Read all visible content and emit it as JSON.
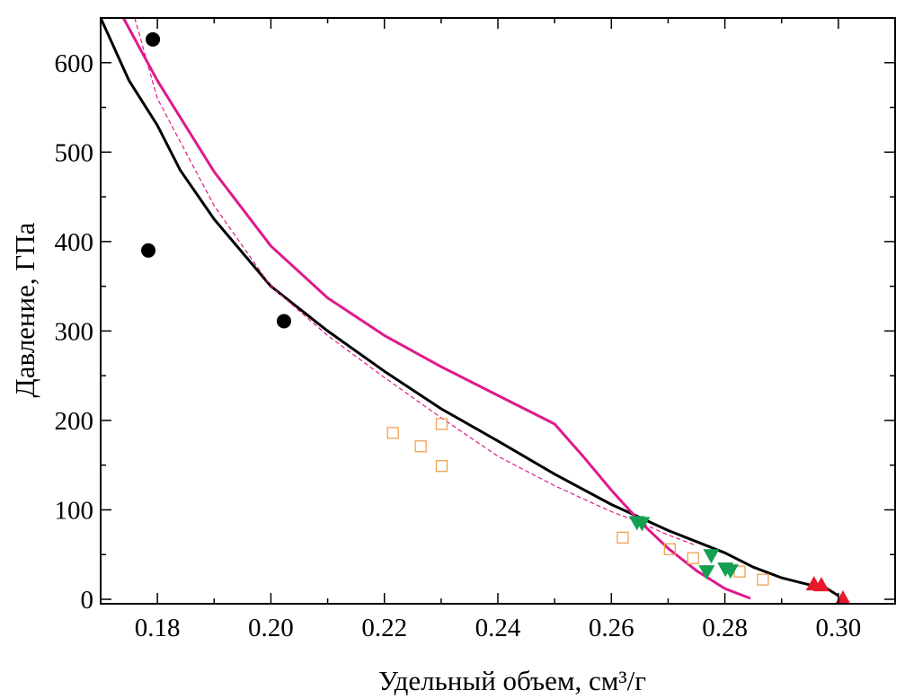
{
  "chart_data": {
    "type": "scatter",
    "title": "",
    "xlabel": "Удельный объем, см³/г",
    "ylabel": "Давление, ГПа",
    "xlim": [
      0.17,
      0.31
    ],
    "ylim": [
      -5,
      650
    ],
    "x_ticks": [
      0.18,
      0.2,
      0.22,
      0.24,
      0.26,
      0.28,
      0.3
    ],
    "x_tick_labels": [
      "0.18",
      "0.20",
      "0.22",
      "0.24",
      "0.26",
      "0.28",
      "0.30"
    ],
    "y_ticks": [
      0,
      100,
      200,
      300,
      400,
      500,
      600
    ],
    "y_tick_labels": [
      "0",
      "100",
      "200",
      "300",
      "400",
      "500",
      "600"
    ],
    "grid": false,
    "series": [
      {
        "name": "black-curve",
        "kind": "line",
        "color": "#000000",
        "x": [
          0.17,
          0.175,
          0.18,
          0.184,
          0.19,
          0.2,
          0.21,
          0.22,
          0.23,
          0.24,
          0.25,
          0.26,
          0.27,
          0.28,
          0.285,
          0.29,
          0.295,
          0.298,
          0.3
        ],
        "y": [
          650,
          580,
          530,
          480,
          425,
          350,
          300,
          255,
          213,
          177,
          140,
          106,
          77,
          52,
          36,
          24,
          16,
          12,
          4
        ]
      },
      {
        "name": "magenta-solid-curve",
        "kind": "line",
        "color": "#e0198c",
        "x": [
          0.174,
          0.18,
          0.19,
          0.2,
          0.21,
          0.22,
          0.23,
          0.24,
          0.25,
          0.255,
          0.26,
          0.265,
          0.27,
          0.275,
          0.28,
          0.2845
        ],
        "y": [
          650,
          580,
          478,
          395,
          337,
          295,
          260,
          228,
          196,
          160,
          122,
          87,
          57,
          32,
          12,
          1
        ]
      },
      {
        "name": "magenta-dashed-curve",
        "kind": "line",
        "dashed": true,
        "color": "#e0198c",
        "x": [
          0.176,
          0.18,
          0.19,
          0.2,
          0.21,
          0.22,
          0.23,
          0.24,
          0.25,
          0.26,
          0.265,
          0.27,
          0.275
        ],
        "y": [
          650,
          560,
          440,
          350,
          295,
          248,
          203,
          160,
          127,
          98,
          86,
          72,
          60
        ]
      },
      {
        "name": "black-circles",
        "kind": "scatter",
        "marker": "circle",
        "color": "#000000",
        "x": [
          0.1792,
          0.1784,
          0.2023
        ],
        "y": [
          626,
          390,
          311
        ]
      },
      {
        "name": "orange-squares",
        "kind": "scatter",
        "marker": "square-open",
        "color": "#f0a050",
        "x": [
          0.2215,
          0.2264,
          0.2301,
          0.2301,
          0.262,
          0.2703,
          0.2744,
          0.2826,
          0.2867
        ],
        "y": [
          186,
          171,
          196,
          149,
          69,
          56,
          46,
          31,
          22
        ]
      },
      {
        "name": "green-triangles-down",
        "kind": "scatter",
        "marker": "triangle-down",
        "color": "#14a050",
        "x": [
          0.2645,
          0.2654,
          0.2776,
          0.2768,
          0.2801,
          0.281
        ],
        "y": [
          86,
          85,
          49,
          31,
          34,
          32
        ]
      },
      {
        "name": "red-triangles-up",
        "kind": "scatter",
        "marker": "triangle-up",
        "color": "#e8192c",
        "x": [
          0.2957,
          0.297,
          0.3008
        ],
        "y": [
          17,
          16,
          1
        ]
      }
    ]
  }
}
